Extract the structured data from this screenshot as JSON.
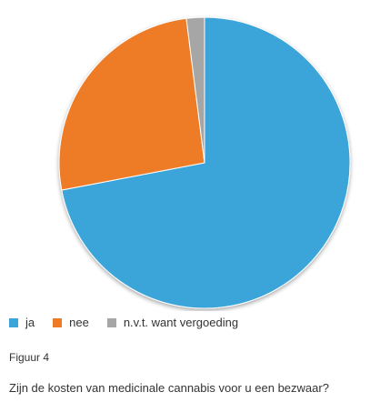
{
  "chart_data": {
    "type": "pie",
    "categories": [
      "ja",
      "nee",
      "n.v.t. want vergoeding"
    ],
    "values": [
      72,
      26,
      2
    ],
    "colors": [
      "#3BA5DA",
      "#EE7B26",
      "#A6A6A6"
    ],
    "legend_position": "bottom-left",
    "start_angle": "12 o'clock",
    "direction": "clockwise"
  },
  "figure": {
    "label": "Figuur 4",
    "caption": "Zijn de kosten van medicinale cannabis voor u een bezwaar?"
  }
}
